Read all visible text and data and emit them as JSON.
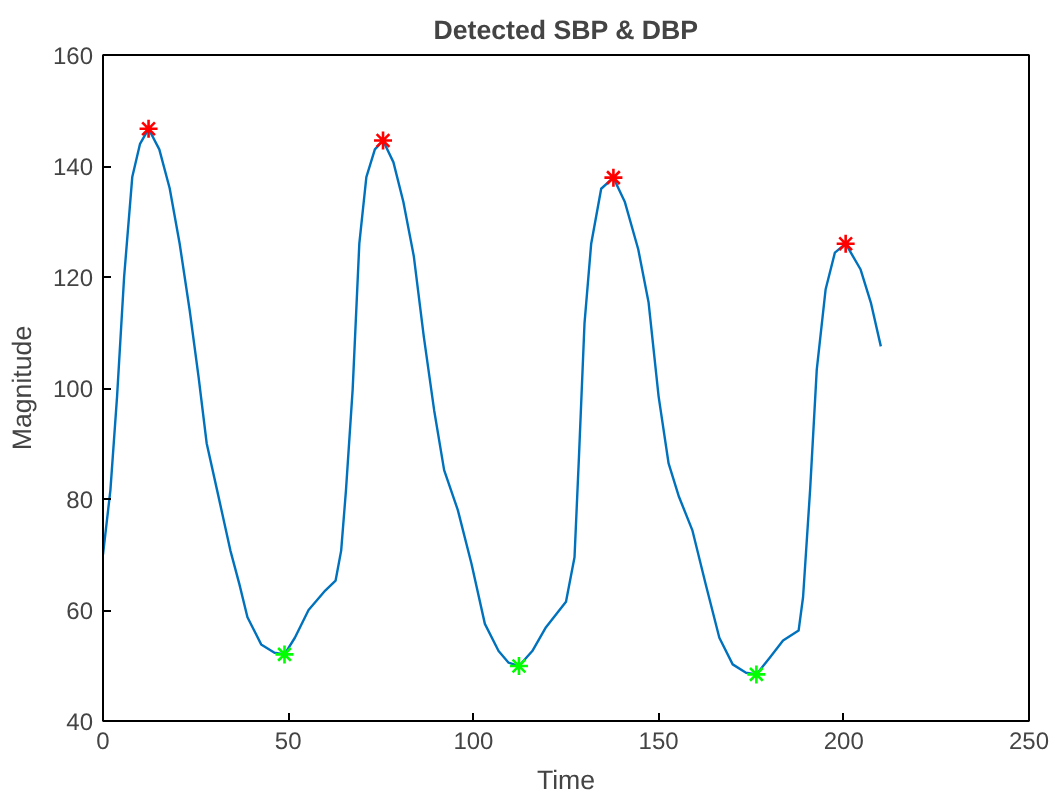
{
  "chart_data": {
    "type": "line",
    "title": "Detected SBP & DBP",
    "xlabel": "Time",
    "ylabel": "Magnitude",
    "xlim": [
      0,
      250
    ],
    "xticks": [
      0,
      50,
      100,
      150,
      200,
      250
    ],
    "ylim": [
      40,
      160
    ],
    "yticks": [
      40,
      60,
      80,
      100,
      120,
      140,
      160
    ],
    "grid": false,
    "series": [
      {
        "color": "#0072bd",
        "marker": "none",
        "x": [
          0,
          2,
          3.8,
          5.7,
          7.9,
          10,
          12.3,
          15.2,
          18,
          20.7,
          23.4,
          25.8,
          28,
          30.8,
          34.4,
          36.8,
          39,
          42.7,
          46.3,
          49,
          51.8,
          55.5,
          60,
          62.8,
          64.3,
          65.6,
          67.4,
          69.2,
          71.1,
          73.4,
          75.6,
          78.4,
          81.1,
          83.9,
          86.6,
          89.4,
          92.1,
          95.8,
          99.5,
          103.1,
          106.8,
          109.5,
          112.3,
          115.9,
          119.6,
          125,
          127.3,
          128.5,
          130,
          131.8,
          134.5,
          137.8,
          140.9,
          144.5,
          147.3,
          150,
          152.7,
          155.5,
          159.1,
          162.7,
          166.4,
          170,
          173.6,
          176.4,
          180,
          183.6,
          187.8,
          189,
          190.9,
          192.7,
          195.1,
          197.6,
          200.5,
          204.5,
          207.3,
          210
        ],
        "values": [
          70,
          81.6,
          98.5,
          120,
          138,
          144,
          146.7,
          143,
          136,
          126,
          114,
          102,
          90,
          81.6,
          70.7,
          64.7,
          58.7,
          53.8,
          52.3,
          52,
          55,
          60,
          63.5,
          65.3,
          70.7,
          81.6,
          99.7,
          126,
          138,
          143,
          144.6,
          140.7,
          133.5,
          123.8,
          109.3,
          96,
          85.2,
          78,
          68.3,
          57.5,
          52.6,
          50.5,
          49.9,
          52.6,
          56.9,
          61.5,
          69.5,
          87.6,
          111.7,
          126,
          135.9,
          137.9,
          133.5,
          125,
          115.4,
          98.5,
          86.4,
          80.4,
          74.4,
          64.7,
          55,
          50.2,
          48.7,
          48.4,
          51.4,
          54.5,
          56.3,
          62.3,
          81.6,
          103.3,
          117.8,
          124.4,
          126,
          121.4,
          115.4,
          107.5
        ]
      },
      {
        "type": "scatter",
        "color": "#ff0000",
        "marker": "cross",
        "x": [
          12.3,
          75.6,
          137.8,
          200.5
        ],
        "values": [
          146.7,
          144.6,
          137.9,
          126
        ]
      },
      {
        "type": "scatter",
        "color": "#00ff00",
        "marker": "cross",
        "x": [
          49,
          112.3,
          176.4
        ],
        "values": [
          52,
          49.9,
          48.4
        ]
      }
    ]
  }
}
